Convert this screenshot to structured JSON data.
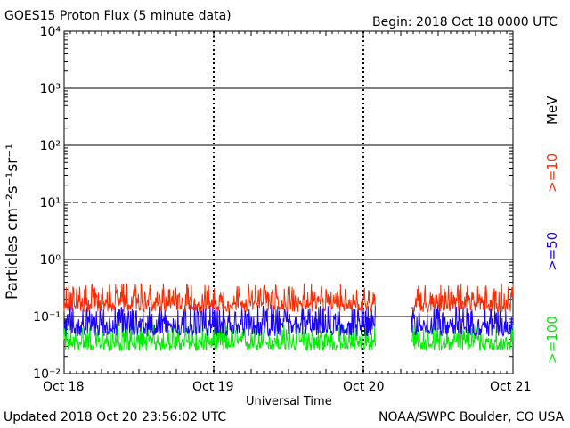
{
  "title": "GOES15 Proton Flux (5 minute data)",
  "begin": "Begin: 2018 Oct 18 0000 UTC",
  "updated": "Updated 2018 Oct 20 23:56:02 UTC",
  "credit": "NOAA/SWPC Boulder, CO USA",
  "colors": {
    "ge10": "#ff2a00",
    "ge50": "#1a00ff",
    "ge100": "#00ee00"
  },
  "chart_data": {
    "type": "line",
    "title": "GOES15 Proton Flux (5 minute data)",
    "xlabel": "Universal Time",
    "ylabel": "Particles cm⁻²s⁻¹sr⁻¹",
    "yscale": "log",
    "ylim": [
      0.01,
      10000
    ],
    "x_range_days": [
      0,
      3
    ],
    "x_ticks": [
      "Oct 18",
      "Oct 19",
      "Oct 20",
      "Oct 21"
    ],
    "y_ticks": [
      "10⁻²",
      "10⁻¹",
      "10⁰",
      "10¹",
      "10²",
      "10³",
      "10⁴"
    ],
    "threshold_lines": [
      {
        "value": 1000,
        "style": "solid"
      },
      {
        "value": 100,
        "style": "solid"
      },
      {
        "value": 10,
        "style": "dashed"
      },
      {
        "value": 1,
        "style": "solid"
      },
      {
        "value": 0.1,
        "style": "solid"
      }
    ],
    "data_gap_days": [
      2.08,
      2.32
    ],
    "units_label": "MeV",
    "series": [
      {
        "name": ">=10",
        "color": "#ff2a00",
        "range": [
          0.12,
          0.38
        ],
        "typical": 0.17
      },
      {
        "name": ">=50",
        "color": "#1a00ff",
        "range": [
          0.045,
          0.16
        ],
        "typical": 0.07
      },
      {
        "name": ">=100",
        "color": "#00ee00",
        "range": [
          0.025,
          0.075
        ],
        "typical": 0.035
      }
    ]
  }
}
